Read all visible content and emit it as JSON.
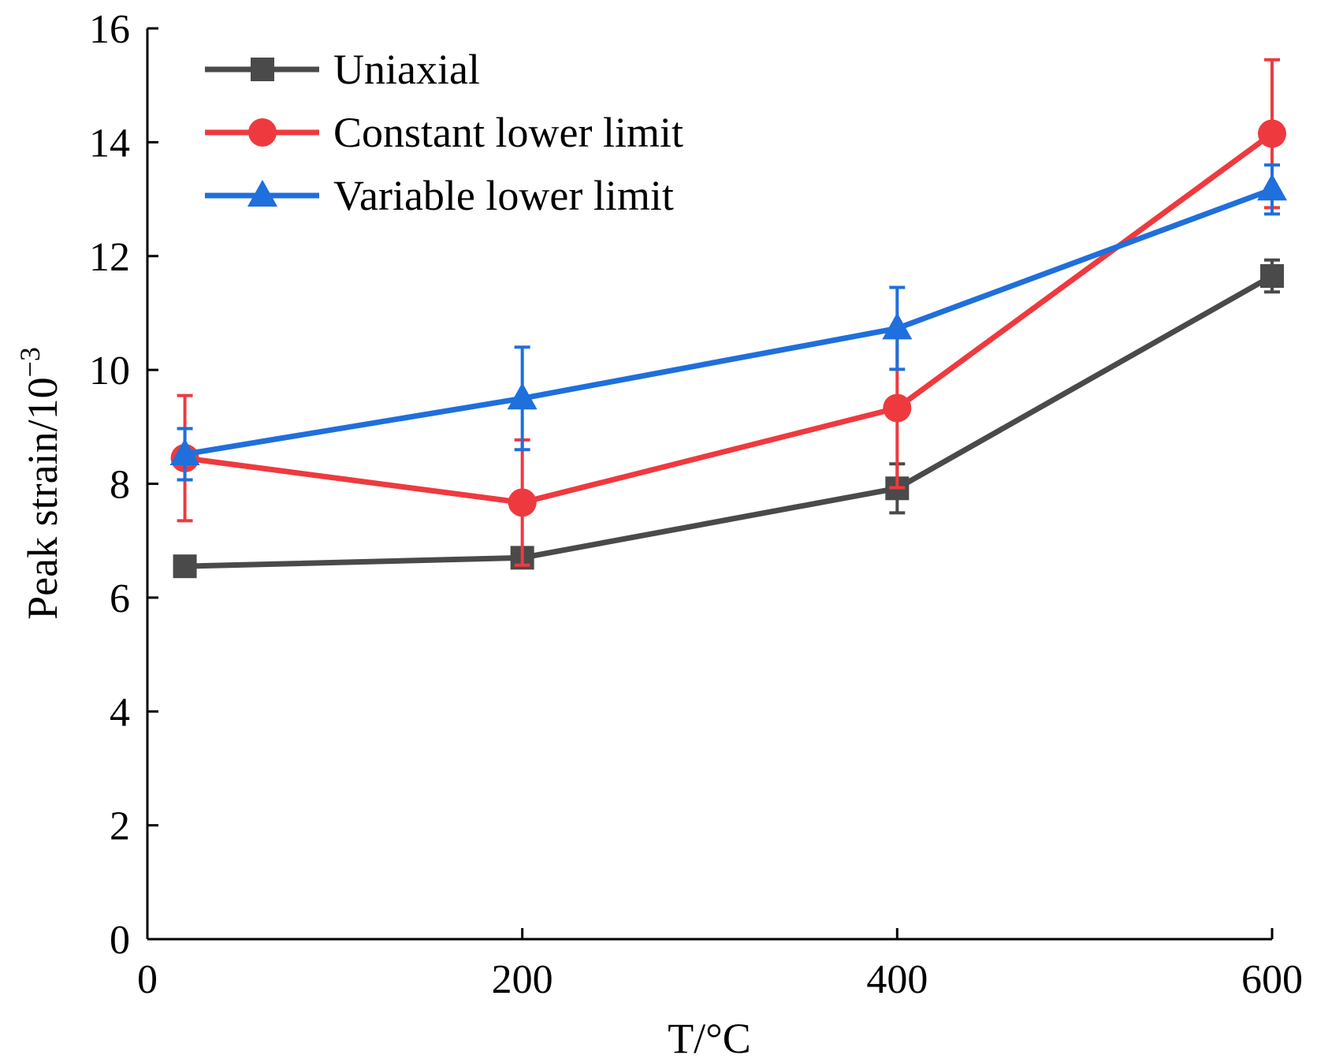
{
  "chart_data": {
    "type": "line",
    "title": "",
    "xlabel": "T/°C",
    "ylabel": "Peak strain/10",
    "ylabel_superscript": "−3",
    "xlim": [
      0,
      600
    ],
    "ylim": [
      0,
      16
    ],
    "xticks": [
      0,
      200,
      400,
      600
    ],
    "yticks": [
      0,
      2,
      4,
      6,
      8,
      10,
      12,
      14,
      16
    ],
    "grid": false,
    "legend_position": "top-left",
    "series": [
      {
        "name": "Uniaxial",
        "color": "#4a4a4a",
        "marker": "square",
        "x": [
          20,
          200,
          400,
          600
        ],
        "y": [
          6.55,
          6.7,
          7.92,
          11.65
        ],
        "err": [
          0.1,
          0.15,
          0.43,
          0.28
        ]
      },
      {
        "name": "Constant lower limit",
        "color": "#ee3a3f",
        "marker": "circle",
        "x": [
          20,
          200,
          400,
          600
        ],
        "y": [
          8.45,
          7.67,
          9.33,
          14.15
        ],
        "err": [
          1.1,
          1.1,
          1.4,
          1.3
        ]
      },
      {
        "name": "Variable lower limit",
        "color": "#1f6fdc",
        "marker": "triangle",
        "x": [
          20,
          200,
          400,
          600
        ],
        "y": [
          8.52,
          9.5,
          10.73,
          13.17
        ],
        "err": [
          0.45,
          0.9,
          0.72,
          0.43
        ]
      }
    ]
  }
}
